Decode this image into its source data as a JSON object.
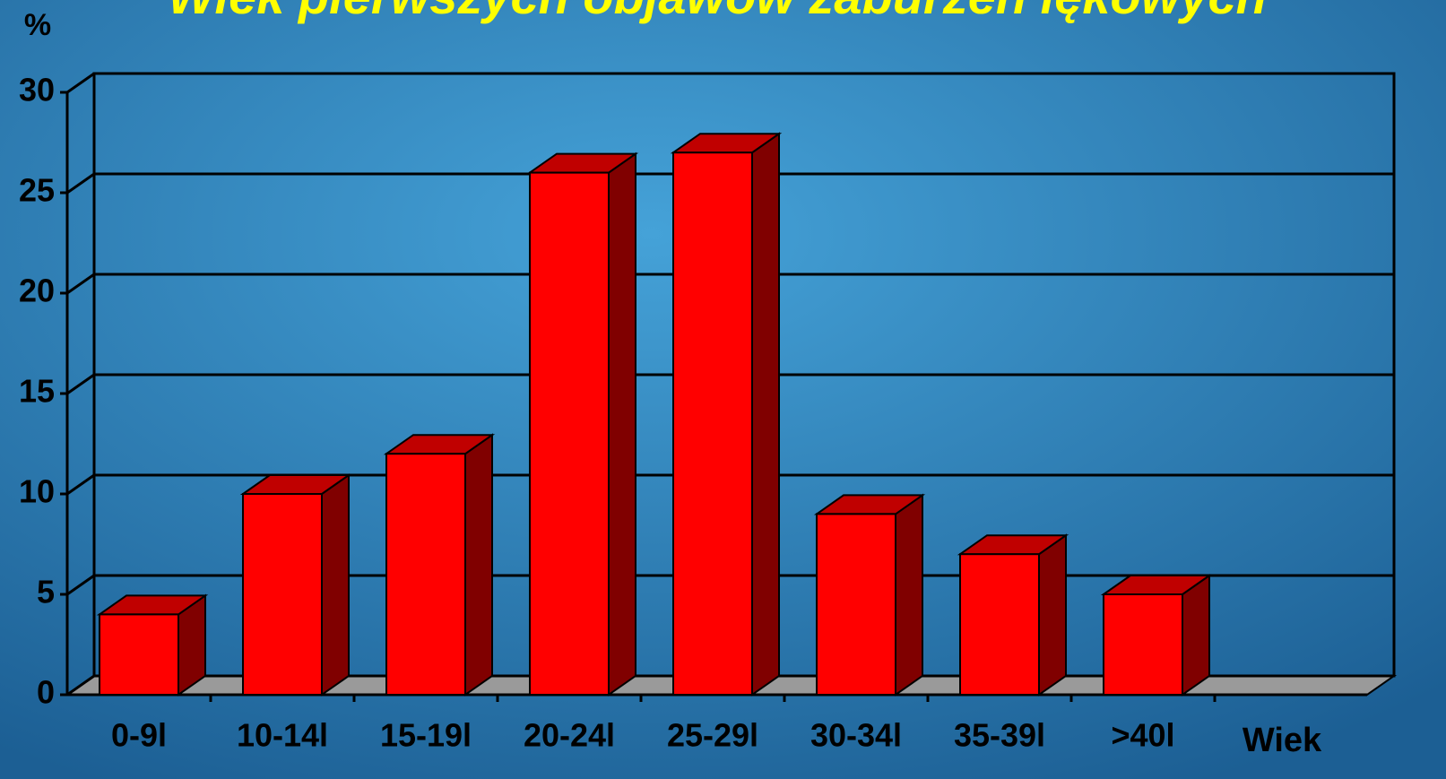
{
  "chart_data": {
    "type": "bar3d",
    "title": "Wiek pierwszych objawów zaburzeń lękowych",
    "y_label": "%",
    "x_label": "Wiek",
    "categories": [
      "0-9l",
      "10-14l",
      "15-19l",
      "20-24l",
      "25-29l",
      "30-34l",
      "35-39l",
      ">40l"
    ],
    "values": [
      4,
      10,
      12,
      26,
      27,
      9,
      7,
      5
    ],
    "color": "#ff0000",
    "ylim": [
      0,
      30
    ],
    "yticks": [
      0,
      5,
      10,
      15,
      20,
      25,
      30
    ],
    "grid": true
  }
}
